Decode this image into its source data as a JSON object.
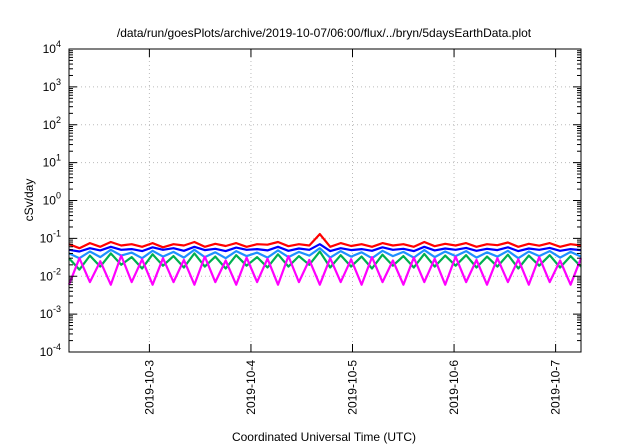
{
  "chart_data": {
    "type": "line",
    "title": "/data/run/goesPlots/archive/2019-10-07/06:00/flux/../bryn/5daysEarthData.plot",
    "xlabel": "Coordinated Universal Time (UTC)",
    "ylabel": "cSv/day",
    "y_scale": "log",
    "ylim": [
      0.0001,
      10000
    ],
    "y_ticks": [
      {
        "value": 0.0001,
        "base": "10",
        "exp": "-4"
      },
      {
        "value": 0.001,
        "base": "10",
        "exp": "-3"
      },
      {
        "value": 0.01,
        "base": "10",
        "exp": "-2"
      },
      {
        "value": 0.1,
        "base": "10",
        "exp": "-1"
      },
      {
        "value": 1,
        "base": "10",
        "exp": "0"
      },
      {
        "value": 10,
        "base": "10",
        "exp": "1"
      },
      {
        "value": 100,
        "base": "10",
        "exp": "2"
      },
      {
        "value": 1000,
        "base": "10",
        "exp": "3"
      },
      {
        "value": 10000,
        "base": "10",
        "exp": "4"
      }
    ],
    "xlim": [
      "2019-10-02T05:00",
      "2019-10-07T06:00"
    ],
    "x_ticks": [
      "2019-10-3",
      "2019-10-4",
      "2019-10-5",
      "2019-10-6",
      "2019-10-7"
    ],
    "grid": true,
    "series": [
      {
        "color": "#ff0000",
        "values": [
          0.07,
          0.055,
          0.075,
          0.06,
          0.08,
          0.065,
          0.07,
          0.06,
          0.075,
          0.058,
          0.07,
          0.065,
          0.08,
          0.06,
          0.072,
          0.063,
          0.075,
          0.06,
          0.07,
          0.068,
          0.08,
          0.062,
          0.07,
          0.065,
          0.13,
          0.06,
          0.075,
          0.063,
          0.07,
          0.06,
          0.075,
          0.065,
          0.07,
          0.06,
          0.08,
          0.062,
          0.072,
          0.065,
          0.075,
          0.06,
          0.07,
          0.066,
          0.078,
          0.06,
          0.072,
          0.064,
          0.075,
          0.06,
          0.07,
          0.065
        ]
      },
      {
        "color": "#0000ff",
        "values": [
          0.05,
          0.045,
          0.055,
          0.048,
          0.06,
          0.05,
          0.052,
          0.046,
          0.058,
          0.05,
          0.055,
          0.047,
          0.06,
          0.049,
          0.053,
          0.046,
          0.057,
          0.05,
          0.052,
          0.048,
          0.06,
          0.047,
          0.054,
          0.05,
          0.07,
          0.046,
          0.055,
          0.049,
          0.052,
          0.047,
          0.058,
          0.05,
          0.053,
          0.046,
          0.06,
          0.048,
          0.054,
          0.05,
          0.056,
          0.047,
          0.053,
          0.049,
          0.058,
          0.046,
          0.054,
          0.05,
          0.056,
          0.047,
          0.052,
          0.049
        ]
      },
      {
        "color": "#00b050",
        "values": [
          0.03,
          0.015,
          0.035,
          0.018,
          0.04,
          0.02,
          0.032,
          0.016,
          0.038,
          0.019,
          0.034,
          0.017,
          0.04,
          0.018,
          0.033,
          0.016,
          0.036,
          0.019,
          0.032,
          0.017,
          0.038,
          0.018,
          0.034,
          0.02,
          0.045,
          0.017,
          0.036,
          0.018,
          0.033,
          0.016,
          0.037,
          0.019,
          0.034,
          0.017,
          0.039,
          0.018,
          0.035,
          0.019,
          0.036,
          0.017,
          0.033,
          0.018,
          0.037,
          0.016,
          0.035,
          0.019,
          0.036,
          0.017,
          0.034,
          0.018
        ]
      },
      {
        "color": "#1e90ff",
        "values": [
          0.04,
          0.03,
          0.045,
          0.032,
          0.05,
          0.035,
          0.042,
          0.03,
          0.047,
          0.033,
          0.044,
          0.031,
          0.05,
          0.032,
          0.043,
          0.03,
          0.046,
          0.034,
          0.042,
          0.031,
          0.048,
          0.032,
          0.044,
          0.035,
          0.055,
          0.031,
          0.046,
          0.033,
          0.043,
          0.03,
          0.047,
          0.034,
          0.044,
          0.031,
          0.049,
          0.032,
          0.045,
          0.034,
          0.046,
          0.031,
          0.043,
          0.033,
          0.047,
          0.03,
          0.045,
          0.034,
          0.046,
          0.031,
          0.044,
          0.033
        ]
      },
      {
        "color": "#ff00ff",
        "values": [
          0.006,
          0.03,
          0.007,
          0.025,
          0.006,
          0.035,
          0.007,
          0.028,
          0.006,
          0.03,
          0.007,
          0.027,
          0.006,
          0.033,
          0.007,
          0.026,
          0.006,
          0.031,
          0.007,
          0.029,
          0.006,
          0.034,
          0.007,
          0.027,
          0.006,
          0.03,
          0.007,
          0.028,
          0.006,
          0.032,
          0.007,
          0.026,
          0.006,
          0.031,
          0.007,
          0.029,
          0.006,
          0.033,
          0.007,
          0.027,
          0.006,
          0.03,
          0.007,
          0.028,
          0.006,
          0.032,
          0.007,
          0.026,
          0.006,
          0.03
        ]
      }
    ]
  }
}
